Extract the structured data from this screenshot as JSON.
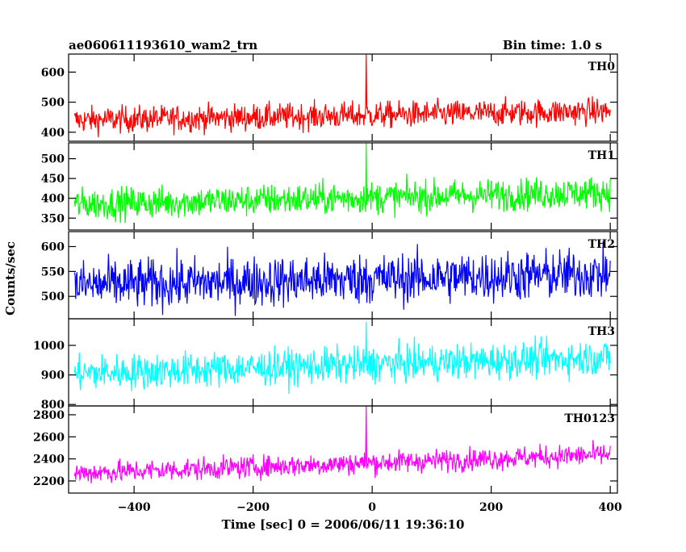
{
  "header": {
    "title": "ae060611193610_wam2_trn",
    "bin_time": "Bin time: 1.0 s"
  },
  "chart_data": {
    "type": "line",
    "title": "ae060611193610_wam2_trn",
    "xlabel": "Time [sec] 0 = 2006/06/11 19:36:10",
    "ylabel": "Counts/sec",
    "xlim": [
      -510,
      412
    ],
    "x_ticks": [
      -400,
      -200,
      0,
      200,
      400
    ],
    "x_tick_labels": [
      "−400",
      "−200",
      "0",
      "200",
      "400"
    ],
    "x_start": -500,
    "x_end": 400,
    "bin_sec": 1.0,
    "spike_time": -10,
    "panels": [
      {
        "name": "TH0",
        "color": "#ff0000",
        "ylim": [
          370,
          660
        ],
        "yticks": [
          400,
          500,
          600
        ],
        "baseline_start": 440,
        "baseline_end": 470,
        "noise": 22,
        "spike_peak": 660
      },
      {
        "name": "TH1",
        "color": "#00ff00",
        "ylim": [
          320,
          540
        ],
        "yticks": [
          350,
          400,
          450,
          500
        ],
        "baseline_start": 385,
        "baseline_end": 415,
        "noise": 20,
        "spike_peak": 540
      },
      {
        "name": "TH2",
        "color": "#0000ff",
        "ylim": [
          455,
          630
        ],
        "yticks": [
          500,
          550,
          600
        ],
        "baseline_start": 522,
        "baseline_end": 545,
        "noise": 25,
        "spike_peak": 575
      },
      {
        "name": "TH3",
        "color": "#00ffff",
        "ylim": [
          795,
          1090
        ],
        "yticks": [
          800,
          900,
          1000
        ],
        "baseline_start": 905,
        "baseline_end": 960,
        "noise": 30,
        "spike_peak": 1080
      },
      {
        "name": "TH0123",
        "color": "#ff00ff",
        "ylim": [
          2090,
          2880
        ],
        "yticks": [
          2200,
          2400,
          2600,
          2800
        ],
        "baseline_start": 2270,
        "baseline_end": 2440,
        "noise": 50,
        "spike_peak": 2880
      }
    ]
  }
}
